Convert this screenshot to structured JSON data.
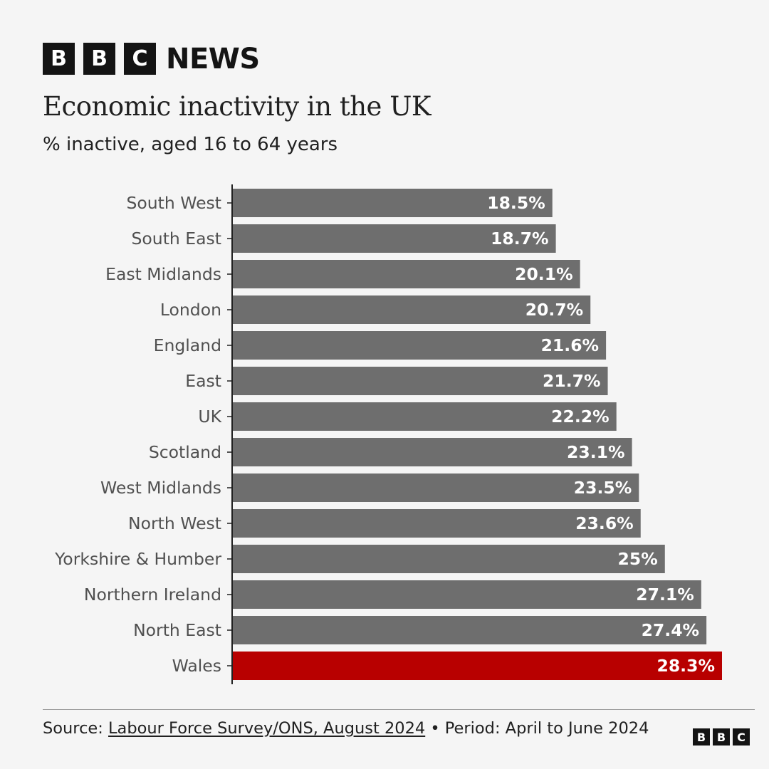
{
  "brand": {
    "logo_letters": [
      "B",
      "B",
      "C"
    ],
    "news_label": "NEWS"
  },
  "chart_data": {
    "type": "bar",
    "orientation": "horizontal",
    "title": "Economic inactivity in the UK",
    "subtitle": "% inactive, aged 16 to 64 years",
    "categories": [
      "South West",
      "South East",
      "East Midlands",
      "London",
      "England",
      "East",
      "UK",
      "Scotland",
      "West Midlands",
      "North West",
      "Yorkshire & Humber",
      "Northern Ireland",
      "North East",
      "Wales"
    ],
    "values": [
      18.5,
      18.7,
      20.1,
      20.7,
      21.6,
      21.7,
      22.2,
      23.1,
      23.5,
      23.6,
      25,
      27.1,
      27.4,
      28.3
    ],
    "value_labels": [
      "18.5%",
      "18.7%",
      "20.1%",
      "20.7%",
      "21.6%",
      "21.7%",
      "22.2%",
      "23.1%",
      "23.5%",
      "23.6%",
      "25%",
      "27.1%",
      "27.4%",
      "28.3%"
    ],
    "highlight": "Wales",
    "colors": {
      "default": "#6e6e6e",
      "highlight": "#b80000",
      "label_text": "#ffffff",
      "category_text": "#505050",
      "axis": "#202020"
    },
    "xlabel": "",
    "ylabel": "",
    "grid": false,
    "xlim": [
      0,
      28.3
    ]
  },
  "footer": {
    "source_prefix": "Source: ",
    "source_link": "Labour Force Survey/ONS, August 2024",
    "period_text": " • Period: April to June 2024"
  }
}
